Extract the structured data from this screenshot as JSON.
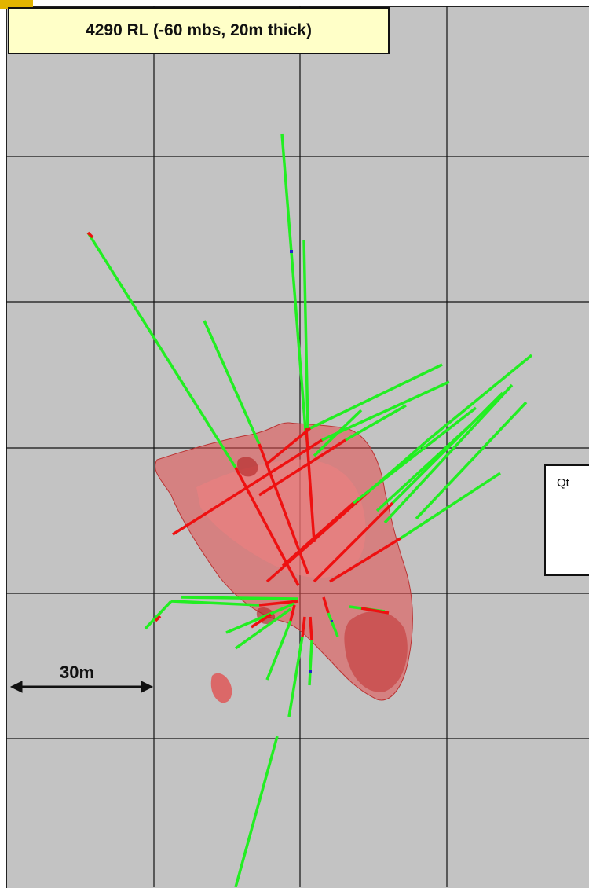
{
  "title": "4290 RL (-60 mbs, 20m thick)",
  "legend": {
    "label": "Qt"
  },
  "scale_bar": {
    "label": "30m"
  },
  "colors": {
    "background": "#c3c3c3",
    "grid": "#111111",
    "orebody_fill": "#e34a4a",
    "drillhole_green": "#22ee22",
    "drillhole_red": "#ee1111",
    "title_box": "#ffffc8",
    "corner_tab": "#e2b400"
  }
}
